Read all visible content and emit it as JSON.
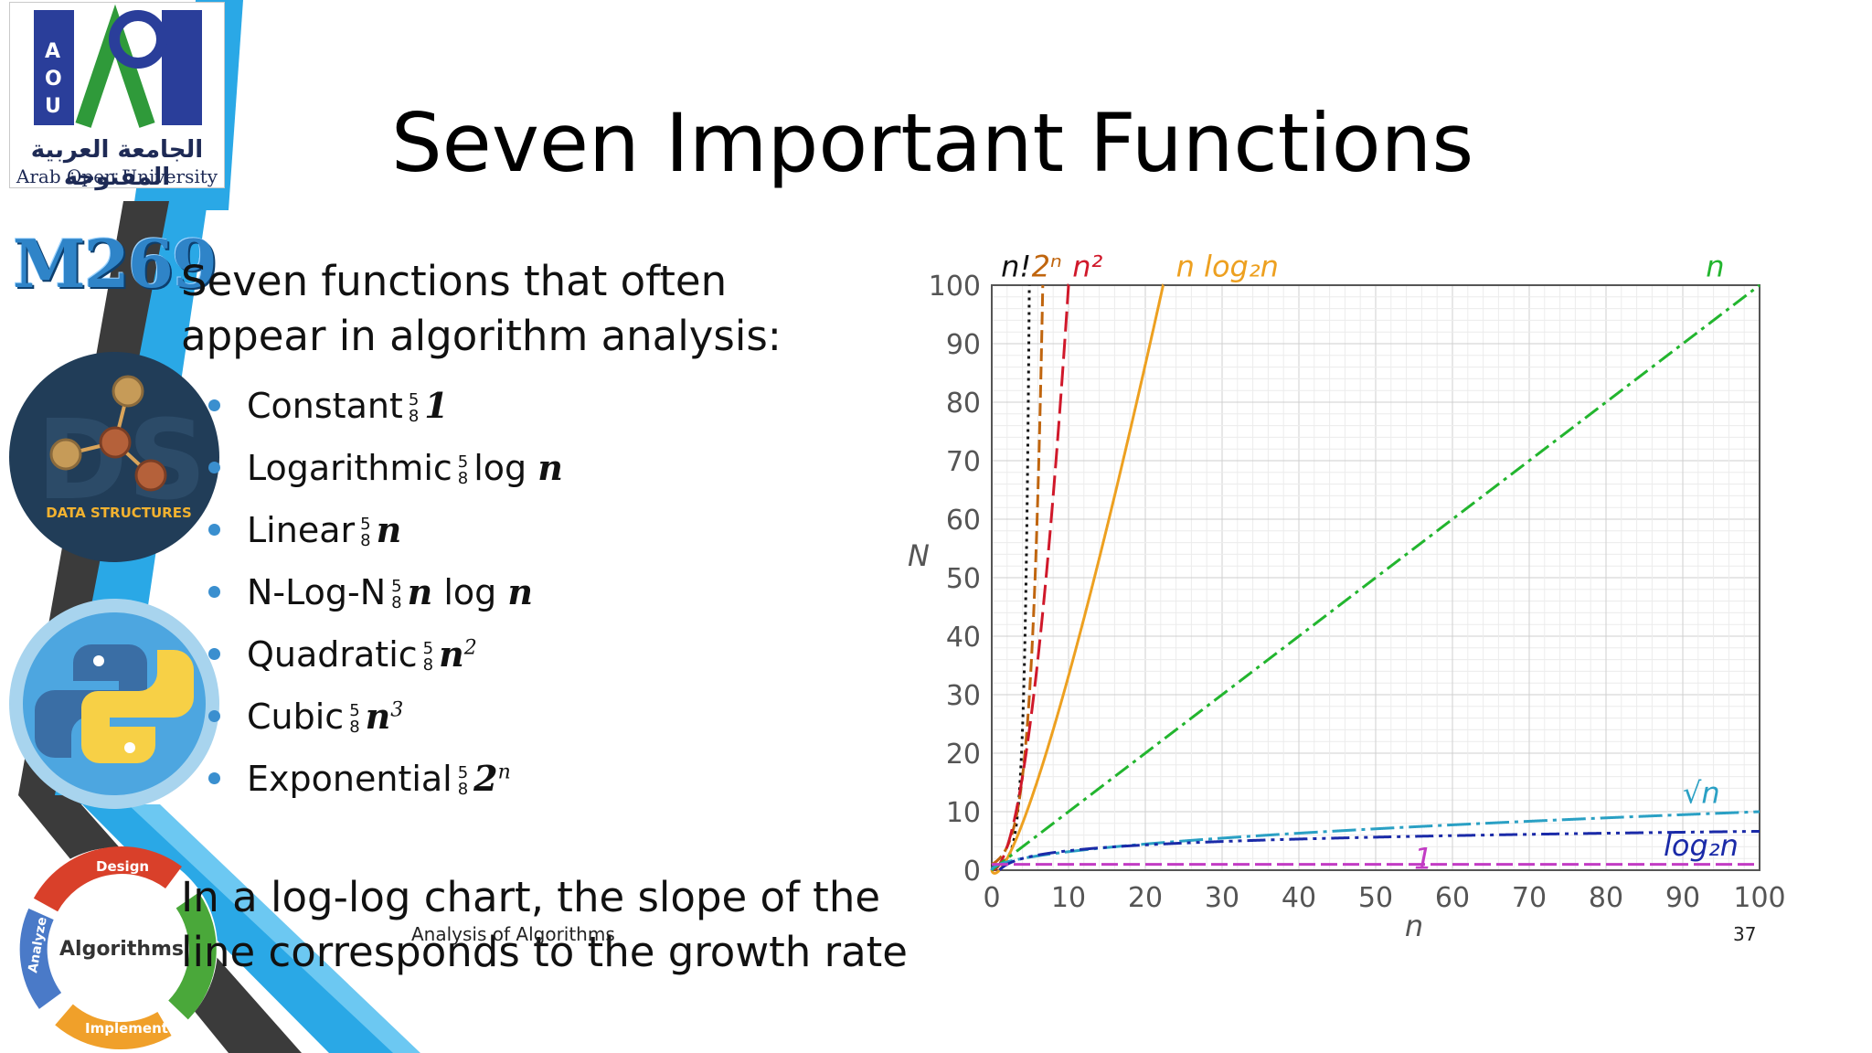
{
  "slide": {
    "title": "Seven Important Functions",
    "intro": "Seven functions that often appear in algorithm analysis:",
    "separator_top": "5",
    "separator_bottom": "8",
    "functions": [
      {
        "name": "Constant",
        "math": "1",
        "has_log": false,
        "sup": ""
      },
      {
        "name": "Logarithmic",
        "math": "n",
        "has_log": true,
        "pre": "",
        "sup": ""
      },
      {
        "name": "Linear",
        "math": "n",
        "has_log": false,
        "sup": ""
      },
      {
        "name": "N-Log-N",
        "math": "n",
        "has_log": true,
        "pre": "n",
        "sup": ""
      },
      {
        "name": "Quadratic",
        "math": "n",
        "has_log": false,
        "sup": "2"
      },
      {
        "name": "Cubic",
        "math": "n",
        "has_log": false,
        "sup": "3"
      },
      {
        "name": "Exponential",
        "math": "2",
        "has_log": false,
        "sup": "n"
      }
    ],
    "log_word": "log",
    "bottom_text": "In a log-log chart, the slope of the line corresponds to the growth rate",
    "footer": "Analysis of Algorithms",
    "page_number": "37"
  },
  "branding": {
    "university_ar": "الجامعة العربية المفتوحة",
    "university_en": "Arab Open University",
    "logo_letters": "AOU",
    "course_code": "M269",
    "data_structures_label": "DATA STRUCTURES",
    "cycle_center": "Algorithms",
    "cycle_steps": [
      "Design",
      "Implement",
      "Analyze"
    ],
    "colors": {
      "blue": "#2aa8e6",
      "dark": "#3a3a3a",
      "navy": "#1e2a55"
    }
  },
  "chart_data": {
    "type": "line",
    "xlabel": "n",
    "ylabel": "N",
    "xlim": [
      0,
      100
    ],
    "ylim": [
      0,
      100
    ],
    "xticks": [
      0,
      10,
      20,
      30,
      40,
      50,
      60,
      70,
      80,
      90,
      100
    ],
    "yticks": [
      0,
      10,
      20,
      30,
      40,
      50,
      60,
      70,
      80,
      90,
      100
    ],
    "grid": true,
    "series": [
      {
        "name": "n!",
        "label": "n!",
        "fn": "factorial",
        "color": "#111111",
        "dash": "3,5"
      },
      {
        "name": "2ⁿ",
        "label": "2ⁿ",
        "fn": "exp2",
        "color": "#c0650e",
        "dash": "14,6"
      },
      {
        "name": "n²",
        "label": "n²",
        "fn": "square",
        "color": "#d0182a",
        "dash": "22,8"
      },
      {
        "name": "n log₂n",
        "label": "n log₂n",
        "fn": "nlogn",
        "color": "#eda020",
        "dash": ""
      },
      {
        "name": "n",
        "label": "n",
        "fn": "linear",
        "color": "#22b52e",
        "dash": "18,6,4,6"
      },
      {
        "name": "√n",
        "label": "√n",
        "fn": "sqrt",
        "color": "#2aa0c4",
        "dash": "26,6,4,6"
      },
      {
        "name": "log₂n",
        "label": "log₂n",
        "fn": "log2",
        "color": "#1a2aa8",
        "dash": "20,6,4,6,4,6"
      },
      {
        "name": "1",
        "label": "1",
        "fn": "const",
        "color": "#c23cc4",
        "dash": "18,6"
      }
    ]
  }
}
